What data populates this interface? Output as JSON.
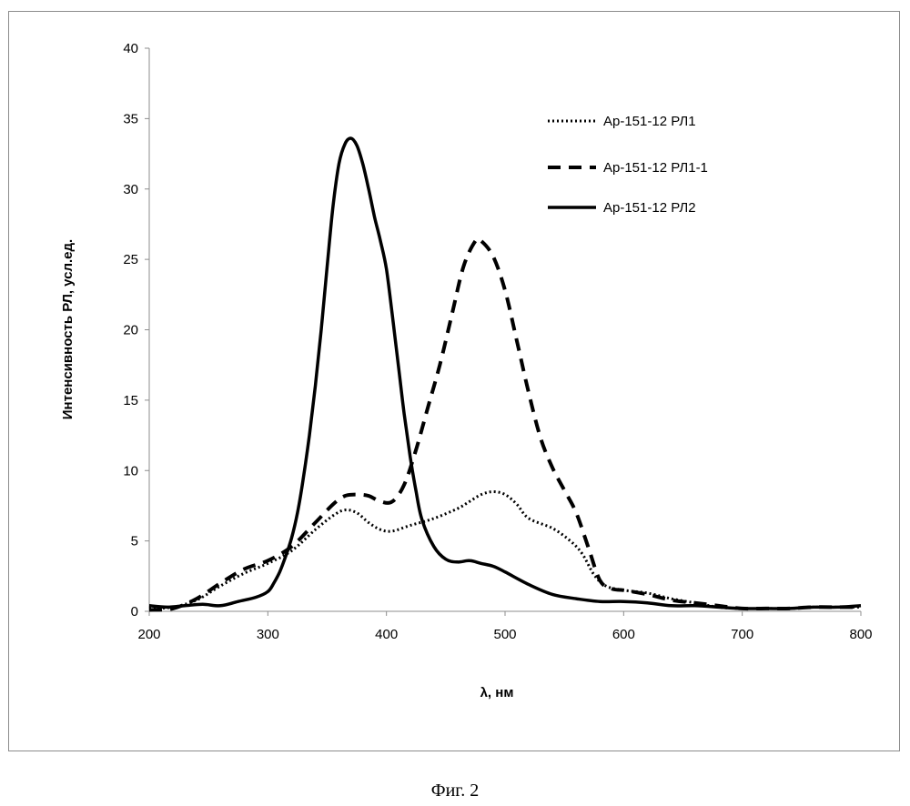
{
  "caption": "Фиг. 2",
  "chart_data": {
    "type": "line",
    "title": "",
    "xlabel": "λ, нм",
    "ylabel": "Интенсивность РЛ, усл.ед.",
    "xlim": [
      200,
      800
    ],
    "ylim": [
      0,
      40
    ],
    "xticks": [
      200,
      300,
      400,
      500,
      600,
      700,
      800
    ],
    "yticks": [
      0,
      5,
      10,
      15,
      20,
      25,
      30,
      35,
      40
    ],
    "grid": false,
    "legend_position": "top-right",
    "series": [
      {
        "name": "Ар-151-12 РЛ1",
        "style": "dotted",
        "x": [
          200,
          220,
          240,
          260,
          280,
          300,
          320,
          340,
          355,
          365,
          375,
          385,
          395,
          405,
          420,
          440,
          460,
          470,
          480,
          490,
          500,
          510,
          520,
          540,
          555,
          565,
          575,
          585,
          600,
          620,
          640,
          660,
          680,
          700,
          720,
          740,
          760,
          780,
          800
        ],
        "y": [
          0.2,
          0.3,
          0.8,
          1.8,
          2.7,
          3.4,
          4.3,
          5.8,
          6.8,
          7.2,
          7.0,
          6.3,
          5.8,
          5.7,
          6.1,
          6.6,
          7.3,
          7.8,
          8.3,
          8.5,
          8.3,
          7.6,
          6.6,
          5.9,
          5.0,
          4.1,
          2.6,
          1.8,
          1.5,
          1.3,
          0.9,
          0.6,
          0.3,
          0.2,
          0.2,
          0.2,
          0.3,
          0.3,
          0.3
        ]
      },
      {
        "name": "Ар-151-12 РЛ1-1",
        "style": "dashed",
        "x": [
          200,
          220,
          240,
          260,
          280,
          300,
          320,
          340,
          355,
          365,
          375,
          385,
          395,
          405,
          415,
          425,
          435,
          445,
          455,
          465,
          475,
          480,
          490,
          500,
          510,
          520,
          530,
          540,
          550,
          560,
          570,
          580,
          590,
          600,
          620,
          640,
          660,
          680,
          700,
          720,
          740,
          760,
          780,
          800
        ],
        "y": [
          0.1,
          0.2,
          0.9,
          2.0,
          3.0,
          3.6,
          4.6,
          6.3,
          7.6,
          8.2,
          8.3,
          8.2,
          7.8,
          7.8,
          9.0,
          11.5,
          14.5,
          17.5,
          21.0,
          24.5,
          26.3,
          26.3,
          25.2,
          22.8,
          19.2,
          15.5,
          12.3,
          10.2,
          8.6,
          7.0,
          4.6,
          2.2,
          1.6,
          1.5,
          1.2,
          0.8,
          0.6,
          0.4,
          0.2,
          0.2,
          0.2,
          0.3,
          0.3,
          0.3
        ]
      },
      {
        "name": "Ар-151-12 РЛ2",
        "style": "solid",
        "x": [
          200,
          215,
          230,
          245,
          260,
          275,
          290,
          300,
          305,
          310,
          315,
          320,
          325,
          330,
          335,
          340,
          345,
          350,
          355,
          360,
          365,
          370,
          375,
          380,
          385,
          390,
          395,
          400,
          405,
          410,
          415,
          420,
          425,
          430,
          440,
          450,
          460,
          470,
          480,
          490,
          500,
          520,
          540,
          560,
          580,
          600,
          620,
          640,
          660,
          680,
          700,
          720,
          740,
          760,
          780,
          800
        ],
        "y": [
          0.4,
          0.3,
          0.4,
          0.5,
          0.4,
          0.7,
          1.0,
          1.4,
          2.0,
          2.8,
          3.9,
          5.2,
          7.0,
          9.5,
          12.5,
          16.0,
          20.0,
          24.5,
          28.8,
          31.8,
          33.2,
          33.6,
          33.1,
          31.8,
          30.0,
          28.0,
          26.3,
          24.3,
          21.0,
          17.5,
          14.0,
          11.0,
          8.5,
          6.5,
          4.6,
          3.7,
          3.5,
          3.6,
          3.4,
          3.2,
          2.8,
          1.9,
          1.2,
          0.9,
          0.7,
          0.7,
          0.6,
          0.4,
          0.4,
          0.3,
          0.2,
          0.2,
          0.2,
          0.3,
          0.3,
          0.4
        ]
      }
    ]
  }
}
